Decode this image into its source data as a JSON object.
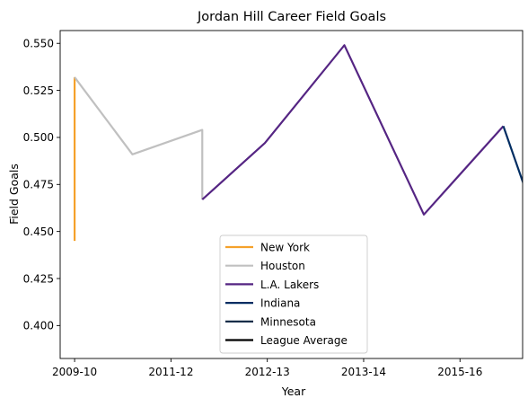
{
  "chart_data": {
    "type": "line",
    "title": "Jordan Hill  Career Field Goals",
    "xlabel": "Year",
    "ylabel": "Field Goals",
    "x_ticks": [
      {
        "pos": 0,
        "label": "2009-10"
      },
      {
        "pos": 2,
        "label": "2011-12"
      },
      {
        "pos": 4,
        "label": "2012-13"
      },
      {
        "pos": 6,
        "label": "2013-14"
      },
      {
        "pos": 8,
        "label": "2015-16"
      }
    ],
    "y_ticks": [
      "0.400",
      "0.425",
      "0.450",
      "0.475",
      "0.500",
      "0.525",
      "0.550"
    ],
    "xlim": [
      -0.3,
      9.3
    ],
    "ylim": [
      0.3825,
      0.5568
    ],
    "legend_position": "lower center",
    "series": [
      {
        "name": "New York",
        "color": "#F5A12A",
        "points": [
          [
            0,
            0.445
          ],
          [
            0,
            0.532
          ]
        ]
      },
      {
        "name": "Houston",
        "color": "#C0C0C0",
        "points": [
          [
            0,
            0.532
          ],
          [
            1.2,
            0.491
          ],
          [
            2.65,
            0.504
          ],
          [
            2.65,
            0.467
          ]
        ]
      },
      {
        "name": "L.A. Lakers",
        "color": "#552583",
        "points": [
          [
            2.65,
            0.467
          ],
          [
            3.95,
            0.497
          ],
          [
            5.6,
            0.549
          ],
          [
            7.25,
            0.459
          ],
          [
            8.9,
            0.506
          ]
        ]
      },
      {
        "name": "Indiana",
        "color": "#002D62",
        "points": [
          [
            8.9,
            0.506
          ],
          [
            10.55,
            0.385
          ]
        ]
      },
      {
        "name": "Minnesota",
        "color": "#0C2340",
        "points": []
      },
      {
        "name": "League Average",
        "color": "#000000",
        "points": []
      }
    ]
  }
}
